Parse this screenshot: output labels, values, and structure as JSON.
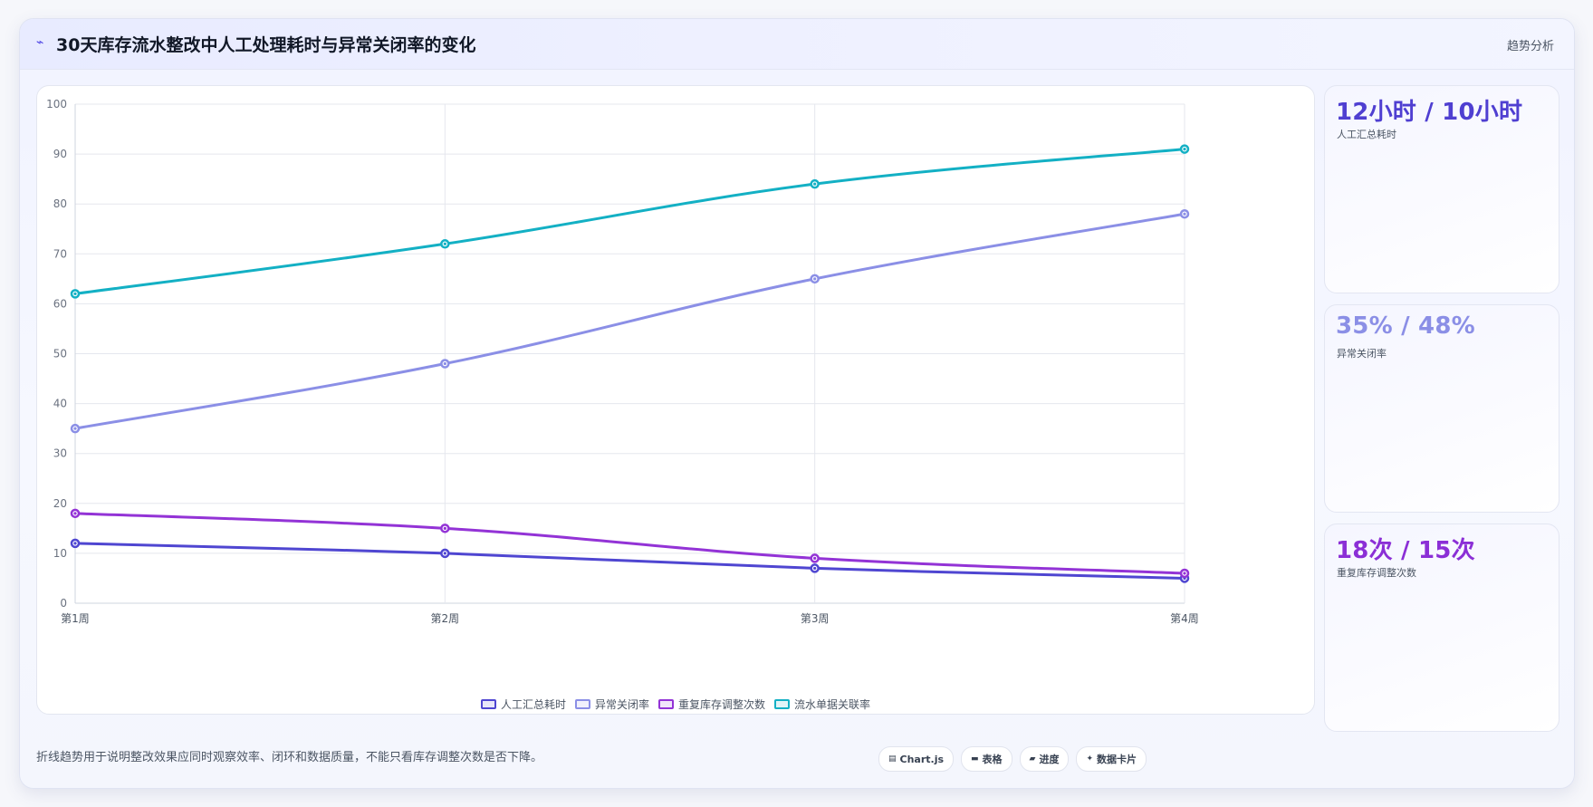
{
  "header": {
    "title": "30天库存流水整改中人工处理耗时与异常关闭率的变化",
    "tag": "趋势分析",
    "icon": "trend-icon"
  },
  "chart_data": {
    "type": "line",
    "categories": [
      "第1周",
      "第2周",
      "第3周",
      "第4周"
    ],
    "ylim": [
      0,
      100
    ],
    "yticks": [
      0,
      10,
      20,
      30,
      40,
      50,
      60,
      70,
      80,
      90,
      100
    ],
    "grid": true,
    "legend_position": "bottom",
    "series": [
      {
        "name": "人工汇总耗时",
        "values": [
          12,
          10,
          7,
          5
        ],
        "color": "#4f46d1"
      },
      {
        "name": "异常关闭率",
        "values": [
          35,
          48,
          65,
          78
        ],
        "color": "#8b8fe6"
      },
      {
        "name": "重复库存调整次数",
        "values": [
          18,
          15,
          9,
          6
        ],
        "color": "#9333d6"
      },
      {
        "name": "流水单据关联率",
        "values": [
          62,
          72,
          84,
          91
        ],
        "color": "#13b0c4"
      }
    ]
  },
  "kpis": [
    {
      "value": "12小时 / 10小时",
      "label": "人工汇总耗时",
      "color": "#4f3fd1"
    },
    {
      "value": "35% / 48%",
      "label": "异常关闭率",
      "color": "#8b8fe6"
    },
    {
      "value": "18次 / 15次",
      "label": "重复库存调整次数",
      "color": "#8b2fd6"
    }
  ],
  "footer": {
    "note": "折线趋势用于说明整改效果应同时观察效率、闭环和数据质量，不能只看库存调整次数是否下降。",
    "chips": [
      {
        "label": "Chart.js",
        "icon": "chart-icon"
      },
      {
        "label": "表格",
        "icon": "table-icon"
      },
      {
        "label": "进度",
        "icon": "progress-icon"
      },
      {
        "label": "数据卡片",
        "icon": "card-icon"
      }
    ]
  }
}
